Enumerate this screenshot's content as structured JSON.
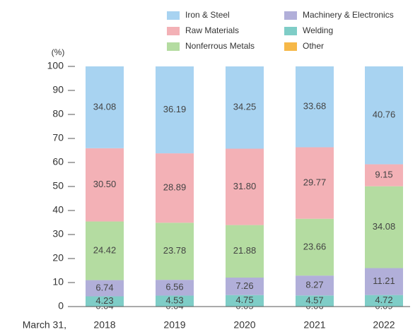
{
  "chart_data": {
    "type": "stacked_bar",
    "y_unit_label": "(%)",
    "xlabel": "March 31,",
    "categories": [
      "2018",
      "2019",
      "2020",
      "2021",
      "2022"
    ],
    "series": [
      {
        "name": "Iron & Steel",
        "color": "#a8d3f1",
        "values": [
          34.08,
          36.19,
          34.25,
          33.68,
          40.76
        ],
        "value_labels": [
          "34.08",
          "36.19",
          "34.25",
          "33.68",
          "40.76"
        ]
      },
      {
        "name": "Raw Materials",
        "color": "#f3b1b6",
        "values": [
          30.5,
          28.89,
          31.8,
          29.77,
          9.15
        ],
        "value_labels": [
          "30.50",
          "28.89",
          "31.80",
          "29.77",
          "9.15"
        ]
      },
      {
        "name": "Nonferrous Metals",
        "color": "#b4dca1",
        "values": [
          24.42,
          23.78,
          21.88,
          23.66,
          34.08
        ],
        "value_labels": [
          "24.42",
          "23.78",
          "21.88",
          "23.66",
          "34.08"
        ]
      },
      {
        "name": "Machinery & Electronics",
        "color": "#b1afd9",
        "values": [
          6.74,
          6.56,
          7.26,
          8.27,
          11.21
        ],
        "value_labels": [
          "6.74",
          "6.56",
          "7.26",
          "8.27",
          "11.21"
        ]
      },
      {
        "name": "Welding",
        "color": "#7fcdc7",
        "values": [
          4.23,
          4.53,
          4.75,
          4.57,
          4.72
        ],
        "value_labels": [
          "4.23",
          "4.53",
          "4.75",
          "4.57",
          "4.72"
        ]
      },
      {
        "name": "Other",
        "color": "#f6b848",
        "values": [
          0.04,
          0.04,
          0.05,
          0.06,
          0.09
        ],
        "value_labels": [
          "0.04",
          "0.04",
          "0.05",
          "0.06",
          "0.09"
        ]
      }
    ],
    "ylim": [
      0,
      100
    ],
    "yticks": [
      0,
      10,
      20,
      30,
      40,
      50,
      60,
      70,
      80,
      90,
      100
    ],
    "grid": false
  }
}
